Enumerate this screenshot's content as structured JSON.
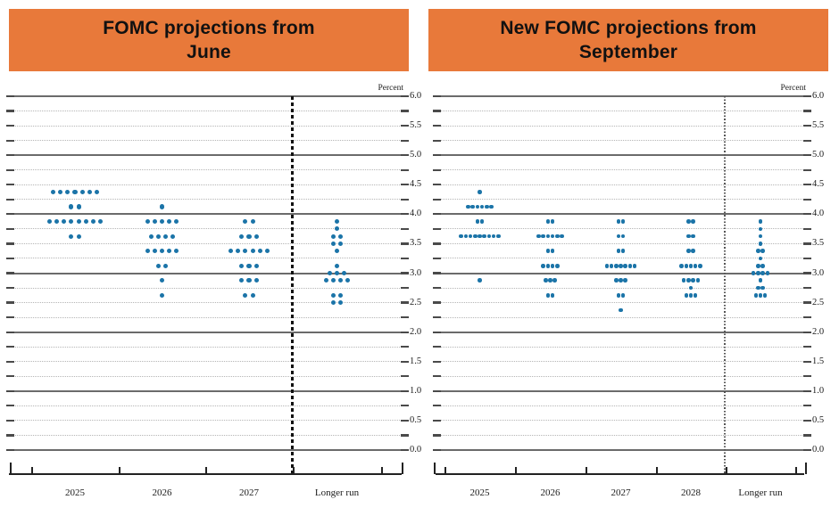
{
  "page": {
    "background": "#ffffff"
  },
  "colors": {
    "header_bg": "#E8793A",
    "header_text": "#111111",
    "dot": "#1B74A8",
    "grid_solid": "#6B6B6B",
    "grid_dotted": "#B5B5B5",
    "edge_tick": "#4A4A4A",
    "axis": "#222222",
    "label_text": "#1A1A1A",
    "separator_bold": "#111111",
    "separator_fine": "#555555"
  },
  "y_axis": {
    "unit_label": "Percent",
    "labels": [
      "6.0",
      "5.5",
      "5.0",
      "4.5",
      "4.0",
      "3.5",
      "3.0",
      "2.5",
      "2.0",
      "1.5",
      "1.0",
      "0.5",
      "0.0"
    ],
    "min": 0.0,
    "max": 6.0,
    "label_step": 0.5,
    "grid_step": 0.25
  },
  "chart_data": [
    {
      "type": "scatter",
      "subtype": "fomc-dot-plot",
      "title": "FOMC projections from June",
      "title_lines": [
        "FOMC projections from",
        "June"
      ],
      "ylabel": "Percent",
      "ylim": [
        0,
        6
      ],
      "grid_step": 0.25,
      "legend": "none",
      "categories": [
        "2025",
        "2026",
        "2027",
        "Longer run"
      ],
      "longer_run_separator_after": "2027",
      "distributions": [
        {
          "category": "2025",
          "dots": [
            {
              "rate": 4.375,
              "count": 7
            },
            {
              "rate": 4.125,
              "count": 2
            },
            {
              "rate": 3.875,
              "count": 8
            },
            {
              "rate": 3.625,
              "count": 2
            }
          ]
        },
        {
          "category": "2026",
          "dots": [
            {
              "rate": 4.125,
              "count": 1
            },
            {
              "rate": 3.875,
              "count": 5
            },
            {
              "rate": 3.625,
              "count": 4
            },
            {
              "rate": 3.375,
              "count": 5
            },
            {
              "rate": 3.125,
              "count": 2
            },
            {
              "rate": 2.875,
              "count": 1
            },
            {
              "rate": 2.625,
              "count": 1
            }
          ]
        },
        {
          "category": "2027",
          "dots": [
            {
              "rate": 3.875,
              "count": 2
            },
            {
              "rate": 3.625,
              "count": 3
            },
            {
              "rate": 3.375,
              "count": 6
            },
            {
              "rate": 3.125,
              "count": 3
            },
            {
              "rate": 2.875,
              "count": 3
            },
            {
              "rate": 2.625,
              "count": 2
            }
          ]
        },
        {
          "category": "Longer run",
          "dots": [
            {
              "rate": 3.875,
              "count": 1
            },
            {
              "rate": 3.75,
              "count": 1
            },
            {
              "rate": 3.625,
              "count": 2
            },
            {
              "rate": 3.5,
              "count": 2
            },
            {
              "rate": 3.375,
              "count": 1
            },
            {
              "rate": 3.125,
              "count": 1
            },
            {
              "rate": 3.0,
              "count": 3
            },
            {
              "rate": 2.875,
              "count": 4
            },
            {
              "rate": 2.625,
              "count": 2
            },
            {
              "rate": 2.5,
              "count": 2
            }
          ]
        }
      ]
    },
    {
      "type": "scatter",
      "subtype": "fomc-dot-plot",
      "title": "New FOMC projections from September",
      "title_lines": [
        "New FOMC projections from",
        "September"
      ],
      "ylabel": "Percent",
      "ylim": [
        0,
        6
      ],
      "grid_step": 0.25,
      "legend": "none",
      "categories": [
        "2025",
        "2026",
        "2027",
        "2028",
        "Longer run"
      ],
      "longer_run_separator_after": "2028",
      "distributions": [
        {
          "category": "2025",
          "dots": [
            {
              "rate": 4.375,
              "count": 1
            },
            {
              "rate": 4.125,
              "count": 6
            },
            {
              "rate": 3.875,
              "count": 2
            },
            {
              "rate": 3.625,
              "count": 9
            },
            {
              "rate": 2.875,
              "count": 1
            }
          ]
        },
        {
          "category": "2026",
          "dots": [
            {
              "rate": 3.875,
              "count": 2
            },
            {
              "rate": 3.625,
              "count": 6
            },
            {
              "rate": 3.375,
              "count": 2
            },
            {
              "rate": 3.125,
              "count": 4
            },
            {
              "rate": 2.875,
              "count": 3
            },
            {
              "rate": 2.625,
              "count": 2
            }
          ]
        },
        {
          "category": "2027",
          "dots": [
            {
              "rate": 3.875,
              "count": 2
            },
            {
              "rate": 3.625,
              "count": 2
            },
            {
              "rate": 3.375,
              "count": 2
            },
            {
              "rate": 3.125,
              "count": 7
            },
            {
              "rate": 2.875,
              "count": 3
            },
            {
              "rate": 2.625,
              "count": 2
            },
            {
              "rate": 2.375,
              "count": 1
            }
          ]
        },
        {
          "category": "2028",
          "dots": [
            {
              "rate": 3.875,
              "count": 2
            },
            {
              "rate": 3.625,
              "count": 2
            },
            {
              "rate": 3.375,
              "count": 2
            },
            {
              "rate": 3.125,
              "count": 5
            },
            {
              "rate": 2.875,
              "count": 4
            },
            {
              "rate": 2.75,
              "count": 1
            },
            {
              "rate": 2.625,
              "count": 3
            }
          ]
        },
        {
          "category": "Longer run",
          "dots": [
            {
              "rate": 3.875,
              "count": 1
            },
            {
              "rate": 3.75,
              "count": 1
            },
            {
              "rate": 3.625,
              "count": 1
            },
            {
              "rate": 3.5,
              "count": 1
            },
            {
              "rate": 3.375,
              "count": 2
            },
            {
              "rate": 3.25,
              "count": 1
            },
            {
              "rate": 3.125,
              "count": 2
            },
            {
              "rate": 3.0,
              "count": 4
            },
            {
              "rate": 2.875,
              "count": 1
            },
            {
              "rate": 2.75,
              "count": 2
            },
            {
              "rate": 2.625,
              "count": 3
            }
          ]
        }
      ]
    }
  ]
}
